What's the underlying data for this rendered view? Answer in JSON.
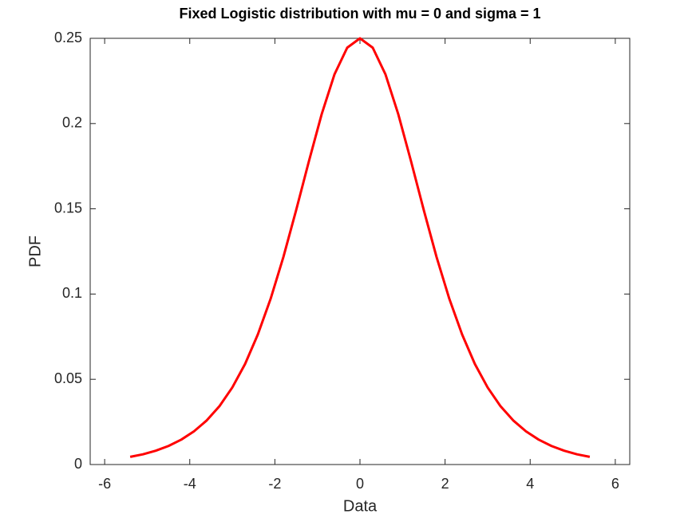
{
  "chart_data": {
    "type": "line",
    "title": "Fixed Logistic distribution with mu = 0 and sigma = 1",
    "xlabel": "Data",
    "ylabel": "PDF",
    "x": [
      -5.4,
      -5.1,
      -4.8,
      -4.5,
      -4.2,
      -3.9,
      -3.6,
      -3.3,
      -3.0,
      -2.7,
      -2.4,
      -2.1,
      -1.8,
      -1.5,
      -1.2,
      -0.9,
      -0.6,
      -0.3,
      0,
      0.3,
      0.6,
      0.9,
      1.2,
      1.5,
      1.8,
      2.1,
      2.4,
      2.7,
      3.0,
      3.3,
      3.6,
      3.9,
      4.2,
      4.5,
      4.8,
      5.1,
      5.4
    ],
    "values": [
      0.0045,
      0.006,
      0.0081,
      0.0109,
      0.0146,
      0.0195,
      0.0259,
      0.0343,
      0.0452,
      0.059,
      0.0763,
      0.0972,
      0.1217,
      0.1492,
      0.1779,
      0.2055,
      0.2288,
      0.2445,
      0.25,
      0.2445,
      0.2288,
      0.2055,
      0.1779,
      0.1492,
      0.1217,
      0.0972,
      0.0763,
      0.059,
      0.0452,
      0.0343,
      0.0259,
      0.0195,
      0.0146,
      0.0109,
      0.0081,
      0.006,
      0.0045
    ],
    "color": "#ff0000",
    "xlim": [
      -6.34,
      6.34
    ],
    "xticks": [
      -6,
      -4,
      -2,
      0,
      2,
      4,
      6
    ],
    "ylim": [
      0,
      0.25
    ],
    "yticks": [
      0,
      0.05,
      0.1,
      0.15,
      0.2,
      0.25
    ],
    "grid": false
  }
}
